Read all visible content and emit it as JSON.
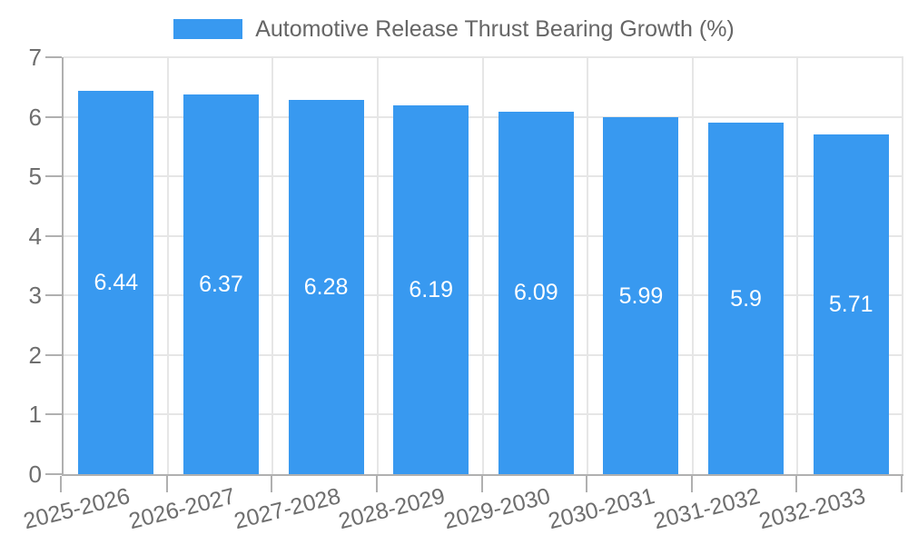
{
  "legend": {
    "label": "Automotive Release Thrust Bearing Growth (%)"
  },
  "chart_data": {
    "type": "bar",
    "title": "Automotive Release Thrust Bearing Growth (%)",
    "categories": [
      "2025-2026",
      "2026-2027",
      "2027-2028",
      "2028-2029",
      "2029-2030",
      "2030-2031",
      "2031-2032",
      "2032-2033"
    ],
    "values": [
      6.44,
      6.37,
      6.28,
      6.19,
      6.09,
      5.99,
      5.9,
      5.71
    ],
    "value_labels": [
      "6.44",
      "6.37",
      "6.28",
      "6.19",
      "6.09",
      "5.99",
      "5.9",
      "5.71"
    ],
    "xlabel": "",
    "ylabel": "",
    "ylim": [
      0,
      7
    ],
    "y_ticks": [
      0,
      1,
      2,
      3,
      4,
      5,
      6,
      7
    ],
    "grid": true,
    "legend_position": "top",
    "colors": {
      "bar": "#3899f0",
      "value_label": "#ffffff",
      "axis_label": "#6e6e6e",
      "title_text": "#666666",
      "grid_line": "#e6e6e6",
      "axis_line": "#b0b0b0"
    }
  }
}
